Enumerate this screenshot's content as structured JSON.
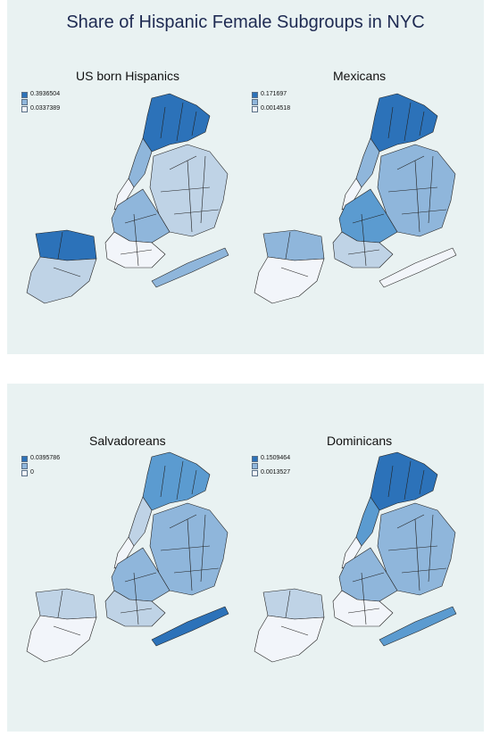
{
  "title": "Share of Hispanic Female Subgroups in NYC",
  "colors": {
    "panel_bg": "#e9f2f2",
    "shade_1": "#f2f5fa",
    "shade_2": "#bfd3e6",
    "shade_3": "#8fb6db",
    "shade_4": "#5b9bd0",
    "shade_5": "#2c72b9"
  },
  "maps": [
    {
      "title": "US born Hispanics",
      "legend": {
        "max": "0.3936504",
        "min": "0.0337389"
      },
      "shading": {
        "bronx": 5,
        "manhattan_n": 3,
        "manhattan_s": 1,
        "queens": 2,
        "brooklyn_n": 3,
        "brooklyn_s": 1,
        "rockaway": 3,
        "staten_n": 5,
        "staten_s": 2
      }
    },
    {
      "title": "Mexicans",
      "legend": {
        "max": "0.171697",
        "min": "0.0014518"
      },
      "shading": {
        "bronx": 5,
        "manhattan_n": 3,
        "manhattan_s": 1,
        "queens": 3,
        "brooklyn_n": 4,
        "brooklyn_s": 2,
        "rockaway": 1,
        "staten_n": 3,
        "staten_s": 1
      }
    },
    {
      "title": "Salvadoreans",
      "legend": {
        "max": "0.0395786",
        "min": "0"
      },
      "shading": {
        "bronx": 4,
        "manhattan_n": 2,
        "manhattan_s": 1,
        "queens": 3,
        "brooklyn_n": 3,
        "brooklyn_s": 2,
        "rockaway": 5,
        "staten_n": 2,
        "staten_s": 1
      }
    },
    {
      "title": "Dominicans",
      "legend": {
        "max": "0.1509464",
        "min": "0.0013527"
      },
      "shading": {
        "bronx": 5,
        "manhattan_n": 4,
        "manhattan_s": 1,
        "queens": 3,
        "brooklyn_n": 3,
        "brooklyn_s": 1,
        "rockaway": 4,
        "staten_n": 2,
        "staten_s": 1
      }
    }
  ]
}
